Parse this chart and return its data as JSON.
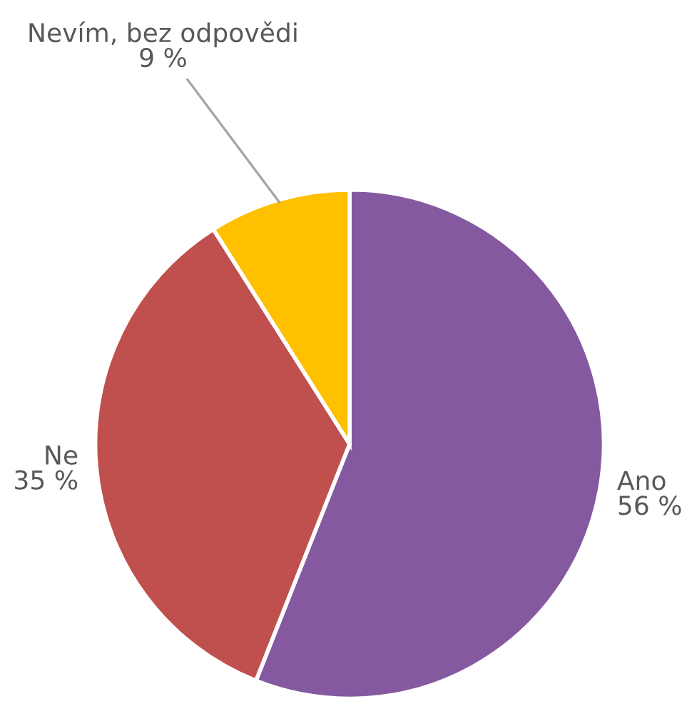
{
  "chart_data": {
    "type": "pie",
    "categories": [
      "Ano",
      "Ne",
      "Nevím, bez odpovědi"
    ],
    "values": [
      56,
      35,
      9
    ],
    "colors": [
      "#8559a0",
      "#c0504d",
      "#ffc000"
    ],
    "value_labels": [
      "56 %",
      "35 %",
      "9 %"
    ]
  }
}
